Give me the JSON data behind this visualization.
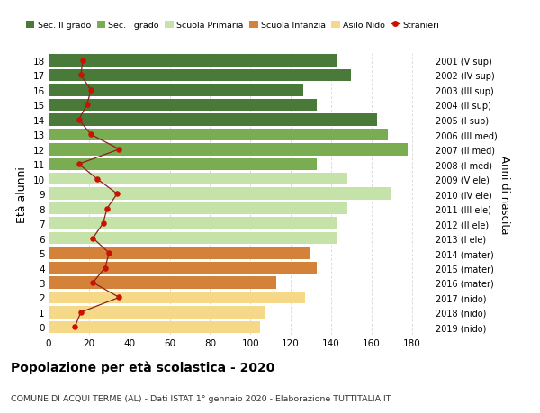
{
  "ages": [
    0,
    1,
    2,
    3,
    4,
    5,
    6,
    7,
    8,
    9,
    10,
    11,
    12,
    13,
    14,
    15,
    16,
    17,
    18
  ],
  "bar_values": [
    105,
    107,
    127,
    113,
    133,
    130,
    143,
    143,
    148,
    170,
    148,
    133,
    178,
    168,
    163,
    133,
    126,
    150,
    143
  ],
  "stranieri": [
    13,
    16,
    35,
    22,
    28,
    30,
    22,
    27,
    29,
    34,
    24,
    15,
    35,
    21,
    15,
    19,
    21,
    16,
    17
  ],
  "right_labels": [
    "2019 (nido)",
    "2018 (nido)",
    "2017 (nido)",
    "2016 (mater)",
    "2015 (mater)",
    "2014 (mater)",
    "2013 (I ele)",
    "2012 (II ele)",
    "2011 (III ele)",
    "2010 (IV ele)",
    "2009 (V ele)",
    "2008 (I med)",
    "2007 (II med)",
    "2006 (III med)",
    "2005 (I sup)",
    "2004 (II sup)",
    "2003 (III sup)",
    "2002 (IV sup)",
    "2001 (V sup)"
  ],
  "colors": {
    "sec_II": "#4a7a3a",
    "sec_I": "#7aad52",
    "primaria": "#c5e2a8",
    "infanzia": "#d4823a",
    "nido": "#f5d888",
    "stranieri_line": "#8b2020",
    "stranieri_dot": "#cc1100",
    "background": "#ffffff",
    "grid": "#cccccc"
  },
  "legend": [
    "Sec. II grado",
    "Sec. I grado",
    "Scuola Primaria",
    "Scuola Infanzia",
    "Asilo Nido",
    "Stranieri"
  ],
  "title": "Popolazione per età scolastica - 2020",
  "subtitle": "COMUNE DI ACQUI TERME (AL) - Dati ISTAT 1° gennaio 2020 - Elaborazione TUTTITALIA.IT",
  "ylabel": "Età alunni",
  "right_ylabel": "Anni di nascita",
  "xlim": [
    0,
    190
  ],
  "xticks": [
    0,
    20,
    40,
    60,
    80,
    100,
    120,
    140,
    160,
    180
  ]
}
